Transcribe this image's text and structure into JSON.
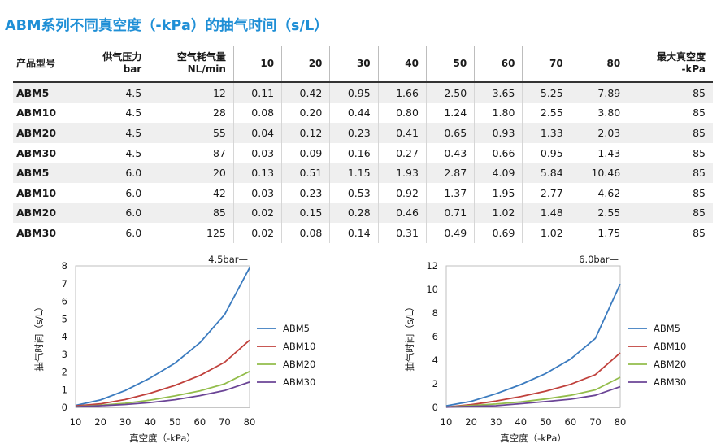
{
  "title": "ABM系列不同真空度（-kPa）的抽气时间（s/L）",
  "table": {
    "headers": [
      [
        "产品型号"
      ],
      [
        "供气压力",
        "bar"
      ],
      [
        "空气耗气量",
        "NL/min"
      ],
      [
        "10"
      ],
      [
        "20"
      ],
      [
        "30"
      ],
      [
        "40"
      ],
      [
        "50"
      ],
      [
        "60"
      ],
      [
        "70"
      ],
      [
        "80"
      ],
      [
        "最大真空度",
        "-kPa"
      ]
    ],
    "rows": [
      [
        "ABM5",
        "4.5",
        "12",
        "0.11",
        "0.42",
        "0.95",
        "1.66",
        "2.50",
        "3.65",
        "5.25",
        "7.89",
        "85"
      ],
      [
        "ABM10",
        "4.5",
        "28",
        "0.08",
        "0.20",
        "0.44",
        "0.80",
        "1.24",
        "1.80",
        "2.55",
        "3.80",
        "85"
      ],
      [
        "ABM20",
        "4.5",
        "55",
        "0.04",
        "0.12",
        "0.23",
        "0.41",
        "0.65",
        "0.93",
        "1.33",
        "2.03",
        "85"
      ],
      [
        "ABM30",
        "4.5",
        "87",
        "0.03",
        "0.09",
        "0.16",
        "0.27",
        "0.43",
        "0.66",
        "0.95",
        "1.43",
        "85"
      ],
      [
        "ABM5",
        "6.0",
        "20",
        "0.13",
        "0.51",
        "1.15",
        "1.93",
        "2.87",
        "4.09",
        "5.84",
        "10.46",
        "85"
      ],
      [
        "ABM10",
        "6.0",
        "42",
        "0.03",
        "0.23",
        "0.53",
        "0.92",
        "1.37",
        "1.95",
        "2.77",
        "4.62",
        "85"
      ],
      [
        "ABM20",
        "6.0",
        "85",
        "0.02",
        "0.15",
        "0.28",
        "0.46",
        "0.71",
        "1.02",
        "1.48",
        "2.55",
        "85"
      ],
      [
        "ABM30",
        "6.0",
        "125",
        "0.02",
        "0.08",
        "0.14",
        "0.31",
        "0.49",
        "0.69",
        "1.02",
        "1.75",
        "85"
      ]
    ]
  },
  "colors": {
    "title": "#1f8fd6",
    "ABM5": "#3b7bbf",
    "ABM10": "#c0413c",
    "ABM20": "#93bd4b",
    "ABM30": "#6b4596"
  },
  "chart_data": [
    {
      "type": "line",
      "title": "4.5bar—",
      "xlabel": "真空度（-kPa）",
      "ylabel": "抽气时间（s/L）",
      "x": [
        10,
        20,
        30,
        40,
        50,
        60,
        70,
        80
      ],
      "xlim": [
        10,
        80
      ],
      "ylim": [
        0,
        8
      ],
      "yticks": [
        0,
        1,
        2,
        3,
        4,
        5,
        6,
        7,
        8
      ],
      "grid": false,
      "legend": "right",
      "series": [
        {
          "name": "ABM5",
          "values": [
            0.11,
            0.42,
            0.95,
            1.66,
            2.5,
            3.65,
            5.25,
            7.89
          ]
        },
        {
          "name": "ABM10",
          "values": [
            0.08,
            0.2,
            0.44,
            0.8,
            1.24,
            1.8,
            2.55,
            3.8
          ]
        },
        {
          "name": "ABM20",
          "values": [
            0.04,
            0.12,
            0.23,
            0.41,
            0.65,
            0.93,
            1.33,
            2.03
          ]
        },
        {
          "name": "ABM30",
          "values": [
            0.03,
            0.09,
            0.16,
            0.27,
            0.43,
            0.66,
            0.95,
            1.43
          ]
        }
      ]
    },
    {
      "type": "line",
      "title": "6.0bar—",
      "xlabel": "真空度（-kPa）",
      "ylabel": "抽气时间（s/L）",
      "x": [
        10,
        20,
        30,
        40,
        50,
        60,
        70,
        80
      ],
      "xlim": [
        10,
        80
      ],
      "ylim": [
        0,
        12
      ],
      "yticks": [
        0,
        2,
        4,
        6,
        8,
        10,
        12
      ],
      "grid": false,
      "legend": "right",
      "series": [
        {
          "name": "ABM5",
          "values": [
            0.13,
            0.51,
            1.15,
            1.93,
            2.87,
            4.09,
            5.84,
            10.46
          ]
        },
        {
          "name": "ABM10",
          "values": [
            0.03,
            0.23,
            0.53,
            0.92,
            1.37,
            1.95,
            2.77,
            4.62
          ]
        },
        {
          "name": "ABM20",
          "values": [
            0.02,
            0.15,
            0.28,
            0.46,
            0.71,
            1.02,
            1.48,
            2.55
          ]
        },
        {
          "name": "ABM30",
          "values": [
            0.02,
            0.08,
            0.14,
            0.31,
            0.49,
            0.69,
            1.02,
            1.75
          ]
        }
      ]
    }
  ]
}
